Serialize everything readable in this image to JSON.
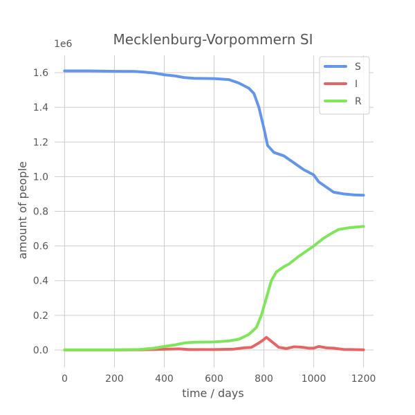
{
  "chart_data": {
    "type": "line",
    "title": "Mecklenburg-Vorpommern SI",
    "xlabel": "time / days",
    "ylabel": "amount of people",
    "y_multiplier_label": "1e6",
    "xlim": [
      -40,
      1240
    ],
    "ylim": [
      -0.1,
      1.7
    ],
    "xticks": [
      0,
      200,
      400,
      600,
      800,
      1000,
      1200
    ],
    "xtick_labels": [
      "0",
      "200",
      "400",
      "600",
      "800",
      "1000",
      "1200"
    ],
    "yticks": [
      0.0,
      0.2,
      0.4,
      0.6,
      0.8,
      1.0,
      1.2,
      1.4,
      1.6
    ],
    "ytick_labels": [
      "0.0",
      "0.2",
      "0.4",
      "0.6",
      "0.8",
      "1.0",
      "1.2",
      "1.4",
      "1.6"
    ],
    "grid": true,
    "legend_position": "top-right",
    "series": [
      {
        "name": "S",
        "color": "#6495ed",
        "points": [
          [
            0,
            1.61
          ],
          [
            100,
            1.61
          ],
          [
            200,
            1.608
          ],
          [
            280,
            1.607
          ],
          [
            320,
            1.603
          ],
          [
            360,
            1.598
          ],
          [
            400,
            1.588
          ],
          [
            440,
            1.582
          ],
          [
            480,
            1.572
          ],
          [
            520,
            1.567
          ],
          [
            600,
            1.566
          ],
          [
            660,
            1.56
          ],
          [
            700,
            1.54
          ],
          [
            740,
            1.51
          ],
          [
            760,
            1.48
          ],
          [
            780,
            1.4
          ],
          [
            800,
            1.28
          ],
          [
            815,
            1.18
          ],
          [
            840,
            1.14
          ],
          [
            880,
            1.12
          ],
          [
            920,
            1.08
          ],
          [
            960,
            1.04
          ],
          [
            1000,
            1.01
          ],
          [
            1020,
            0.97
          ],
          [
            1050,
            0.94
          ],
          [
            1080,
            0.91
          ],
          [
            1120,
            0.9
          ],
          [
            1160,
            0.895
          ],
          [
            1200,
            0.893
          ]
        ]
      },
      {
        "name": "I",
        "color": "#e86464",
        "points": [
          [
            0,
            0.0
          ],
          [
            200,
            0.0
          ],
          [
            300,
            0.001
          ],
          [
            400,
            0.004
          ],
          [
            460,
            0.006
          ],
          [
            500,
            0.002
          ],
          [
            600,
            0.002
          ],
          [
            680,
            0.005
          ],
          [
            720,
            0.012
          ],
          [
            750,
            0.015
          ],
          [
            780,
            0.04
          ],
          [
            800,
            0.06
          ],
          [
            810,
            0.073
          ],
          [
            830,
            0.05
          ],
          [
            860,
            0.015
          ],
          [
            890,
            0.008
          ],
          [
            920,
            0.018
          ],
          [
            950,
            0.016
          ],
          [
            980,
            0.01
          ],
          [
            1000,
            0.01
          ],
          [
            1020,
            0.02
          ],
          [
            1050,
            0.012
          ],
          [
            1080,
            0.01
          ],
          [
            1120,
            0.003
          ],
          [
            1200,
            0.001
          ]
        ]
      },
      {
        "name": "R",
        "color": "#7fe65a",
        "points": [
          [
            0,
            0.0
          ],
          [
            200,
            0.0
          ],
          [
            300,
            0.003
          ],
          [
            360,
            0.01
          ],
          [
            400,
            0.02
          ],
          [
            440,
            0.028
          ],
          [
            480,
            0.04
          ],
          [
            520,
            0.045
          ],
          [
            600,
            0.046
          ],
          [
            660,
            0.052
          ],
          [
            700,
            0.062
          ],
          [
            740,
            0.09
          ],
          [
            770,
            0.13
          ],
          [
            790,
            0.2
          ],
          [
            810,
            0.3
          ],
          [
            830,
            0.4
          ],
          [
            850,
            0.45
          ],
          [
            880,
            0.48
          ],
          [
            900,
            0.495
          ],
          [
            940,
            0.54
          ],
          [
            980,
            0.58
          ],
          [
            1000,
            0.6
          ],
          [
            1040,
            0.645
          ],
          [
            1080,
            0.68
          ],
          [
            1100,
            0.695
          ],
          [
            1140,
            0.705
          ],
          [
            1200,
            0.713
          ]
        ]
      }
    ]
  }
}
